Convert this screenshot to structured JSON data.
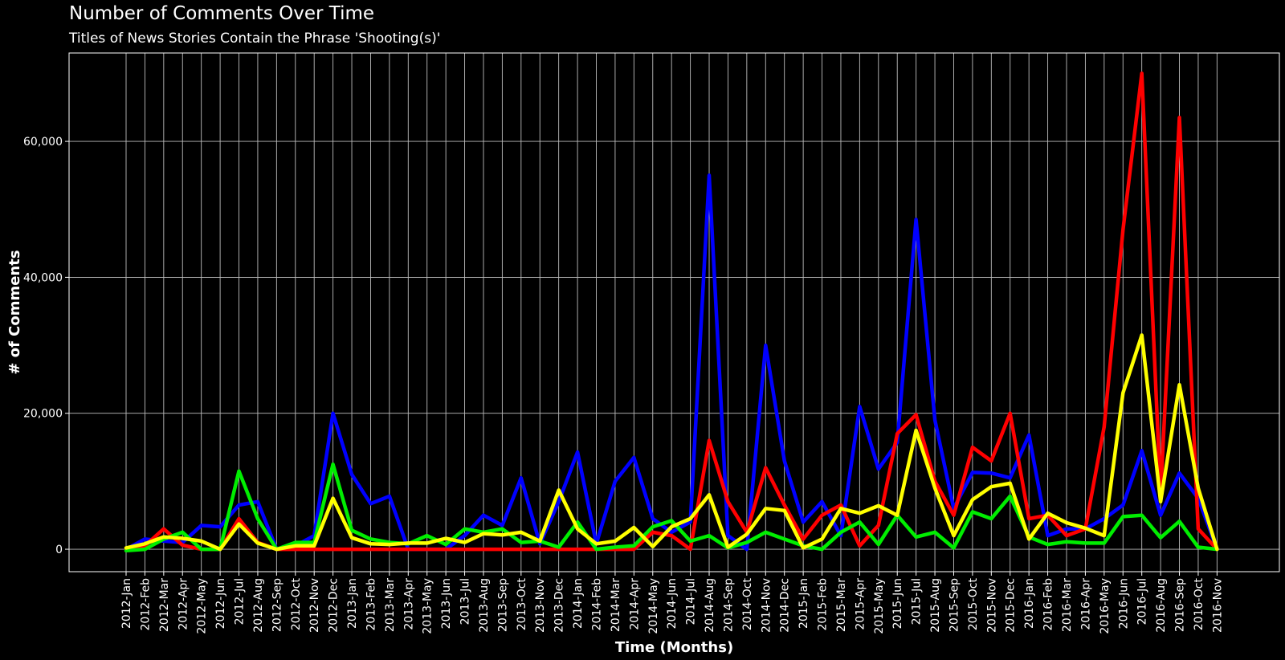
{
  "header": {
    "title": "Number of Comments Over Time",
    "subtitle": "Titles of News Stories Contain the Phrase 'Shooting(s)'"
  },
  "chart_data": {
    "type": "line",
    "title": "Number of Comments Over Time",
    "subtitle": "Titles of News Stories Contain the Phrase 'Shooting(s)'",
    "xlabel": "Time (Months)",
    "ylabel": "# of Comments",
    "ylim": [
      -3300,
      73000
    ],
    "yticks": [
      0,
      20000,
      40000,
      60000
    ],
    "ytick_labels": [
      "0",
      "20,000",
      "40,000",
      "60,000"
    ],
    "grid": true,
    "legend": "none",
    "categories": [
      "2012-Jan",
      "2012-Feb",
      "2012-Mar",
      "2012-Apr",
      "2012-May",
      "2012-Jun",
      "2012-Jul",
      "2012-Aug",
      "2012-Sep",
      "2012-Oct",
      "2012-Nov",
      "2012-Dec",
      "2013-Jan",
      "2013-Feb",
      "2013-Mar",
      "2013-Apr",
      "2013-May",
      "2013-Jun",
      "2013-Jul",
      "2013-Aug",
      "2013-Sep",
      "2013-Oct",
      "2013-Nov",
      "2013-Dec",
      "2014-Jan",
      "2014-Feb",
      "2014-Mar",
      "2014-Apr",
      "2014-May",
      "2014-Jun",
      "2014-Jul",
      "2014-Aug",
      "2014-Sep",
      "2014-Oct",
      "2014-Nov",
      "2014-Dec",
      "2015-Jan",
      "2015-Feb",
      "2015-Mar",
      "2015-Apr",
      "2015-May",
      "2015-Jun",
      "2015-Jul",
      "2015-Aug",
      "2015-Sep",
      "2015-Oct",
      "2015-Nov",
      "2015-Dec",
      "2016-Jan",
      "2016-Feb",
      "2016-Mar",
      "2016-Apr",
      "2016-May",
      "2016-Jun",
      "2016-Jul",
      "2016-Aug",
      "2016-Sep",
      "2016-Oct",
      "2016-Nov"
    ],
    "series": [
      {
        "color": "#0000ff",
        "values": [
          0,
          1500,
          1200,
          1000,
          3500,
          3300,
          6500,
          7000,
          0,
          500,
          2000,
          20000,
          11000,
          6700,
          7800,
          0,
          0,
          0,
          2000,
          5000,
          3500,
          10500,
          800,
          7000,
          14300,
          800,
          10000,
          13500,
          4500,
          2500,
          4000,
          55000,
          2000,
          0,
          30000,
          13000,
          4000,
          7000,
          2000,
          21000,
          11800,
          15700,
          48500,
          19000,
          6000,
          11300,
          11200,
          10500,
          16800,
          2000,
          3000,
          3000,
          4500,
          6500,
          14500,
          5000,
          11200,
          7500,
          0
        ]
      },
      {
        "color": "#ff0000",
        "values": [
          0,
          500,
          3000,
          600,
          0,
          0,
          4500,
          1000,
          0,
          0,
          0,
          0,
          0,
          0,
          0,
          0,
          0,
          0,
          0,
          0,
          0,
          0,
          0,
          0,
          0,
          0,
          0,
          0,
          2500,
          2000,
          0,
          16000,
          7000,
          2500,
          12000,
          6500,
          1500,
          5000,
          6500,
          500,
          3500,
          17000,
          19800,
          10000,
          5000,
          15000,
          13000,
          20000,
          4500,
          5000,
          2000,
          3000,
          18000,
          47000,
          70000,
          8000,
          63500,
          3000,
          0
        ]
      },
      {
        "color": "#00ee00",
        "values": [
          -200,
          0,
          1500,
          2500,
          0,
          0,
          11500,
          4500,
          0,
          1000,
          1000,
          12500,
          2800,
          1500,
          1000,
          800,
          2000,
          700,
          3000,
          2500,
          3000,
          1000,
          1200,
          300,
          4000,
          0,
          300,
          500,
          3300,
          4200,
          1200,
          2000,
          200,
          1000,
          2500,
          1500,
          500,
          0,
          2500,
          4000,
          700,
          5000,
          1800,
          2500,
          200,
          5500,
          4500,
          7800,
          1800,
          700,
          1100,
          900,
          900,
          4800,
          5000,
          1700,
          4100,
          300,
          0
        ]
      },
      {
        "color": "#ffff00",
        "values": [
          200,
          800,
          1800,
          1600,
          1200,
          0,
          3700,
          900,
          0,
          500,
          500,
          7500,
          1700,
          800,
          700,
          900,
          900,
          1600,
          1000,
          2300,
          2100,
          2500,
          1200,
          8700,
          3000,
          800,
          1200,
          3200,
          400,
          3300,
          4500,
          8000,
          300,
          2200,
          6000,
          5700,
          200,
          1500,
          6000,
          5300,
          6400,
          5000,
          17500,
          9000,
          2000,
          7300,
          9200,
          9700,
          1500,
          5300,
          3900,
          3100,
          2000,
          23000,
          31500,
          7000,
          24200,
          9000,
          0
        ]
      }
    ]
  }
}
